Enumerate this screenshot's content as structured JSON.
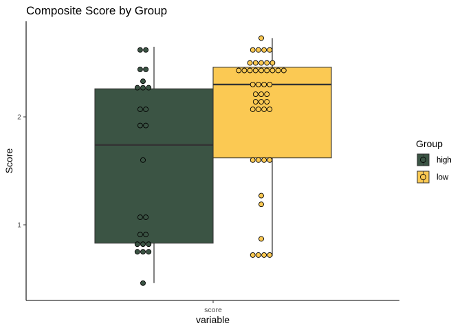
{
  "chart_data": {
    "type": "boxplot",
    "title": "Composite Score by Group",
    "xlabel": "variable",
    "ylabel": "Score",
    "categories": [
      "score"
    ],
    "yticks": [
      1,
      2
    ],
    "ylim": [
      0.3,
      2.83
    ],
    "grid": false,
    "legend": {
      "title": "Group",
      "position": "right"
    },
    "series": [
      {
        "name": "high",
        "color": "#3b5444",
        "box": {
          "min": 0.46,
          "q1": 0.83,
          "median": 1.74,
          "q3": 2.26,
          "max": 2.65
        },
        "points": [
          {
            "y": 2.62,
            "n": 2
          },
          {
            "y": 2.44,
            "n": 2
          },
          {
            "y": 2.33,
            "n": 1
          },
          {
            "y": 2.27,
            "n": 3
          },
          {
            "y": 2.07,
            "n": 2
          },
          {
            "y": 1.92,
            "n": 2
          },
          {
            "y": 1.6,
            "n": 1
          },
          {
            "y": 1.07,
            "n": 2
          },
          {
            "y": 0.91,
            "n": 2
          },
          {
            "y": 0.82,
            "n": 3
          },
          {
            "y": 0.75,
            "n": 3
          },
          {
            "y": 0.46,
            "n": 1
          }
        ]
      },
      {
        "name": "low",
        "color": "#fbc953",
        "box": {
          "min": 0.71,
          "q1": 1.62,
          "median": 2.3,
          "q3": 2.46,
          "max": 2.73
        },
        "points": [
          {
            "y": 2.73,
            "n": 1
          },
          {
            "y": 2.62,
            "n": 4
          },
          {
            "y": 2.5,
            "n": 5
          },
          {
            "y": 2.43,
            "n": 9
          },
          {
            "y": 2.3,
            "n": 4
          },
          {
            "y": 2.21,
            "n": 3
          },
          {
            "y": 2.14,
            "n": 3
          },
          {
            "y": 2.07,
            "n": 4
          },
          {
            "y": 1.6,
            "n": 4
          },
          {
            "y": 1.27,
            "n": 1
          },
          {
            "y": 1.19,
            "n": 1
          },
          {
            "y": 0.87,
            "n": 1
          },
          {
            "y": 0.72,
            "n": 4
          }
        ]
      }
    ]
  }
}
